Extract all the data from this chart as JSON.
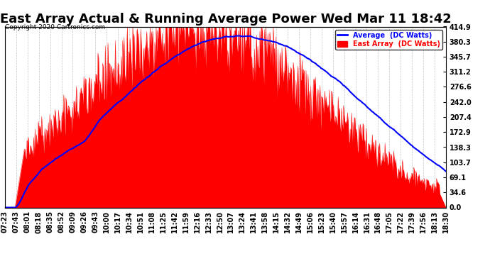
{
  "title": "East Array Actual & Running Average Power Wed Mar 11 18:42",
  "copyright": "Copyright 2020 Cartronics.com",
  "legend_avg": "Average  (DC Watts)",
  "legend_east": "East Array  (DC Watts)",
  "ymax": 414.9,
  "yticks": [
    0.0,
    34.6,
    69.1,
    103.7,
    138.3,
    172.9,
    207.4,
    242.0,
    276.6,
    311.2,
    345.7,
    380.3,
    414.9
  ],
  "background_color": "#ffffff",
  "plot_bg_color": "#ffffff",
  "grid_color": "#aaaaaa",
  "east_array_color": "#ff0000",
  "avg_color": "#0000ff",
  "title_fontsize": 13,
  "tick_fontsize": 7,
  "x_tick_labels": [
    "07:23",
    "07:43",
    "08:01",
    "08:18",
    "08:35",
    "08:52",
    "09:09",
    "09:26",
    "09:43",
    "10:00",
    "10:17",
    "10:34",
    "10:51",
    "11:08",
    "11:25",
    "11:42",
    "11:59",
    "12:16",
    "12:33",
    "12:50",
    "13:07",
    "13:24",
    "13:41",
    "13:58",
    "14:15",
    "14:32",
    "14:49",
    "15:06",
    "15:23",
    "15:40",
    "15:57",
    "16:14",
    "16:31",
    "16:48",
    "17:05",
    "17:22",
    "17:39",
    "17:56",
    "18:13",
    "18:30"
  ]
}
